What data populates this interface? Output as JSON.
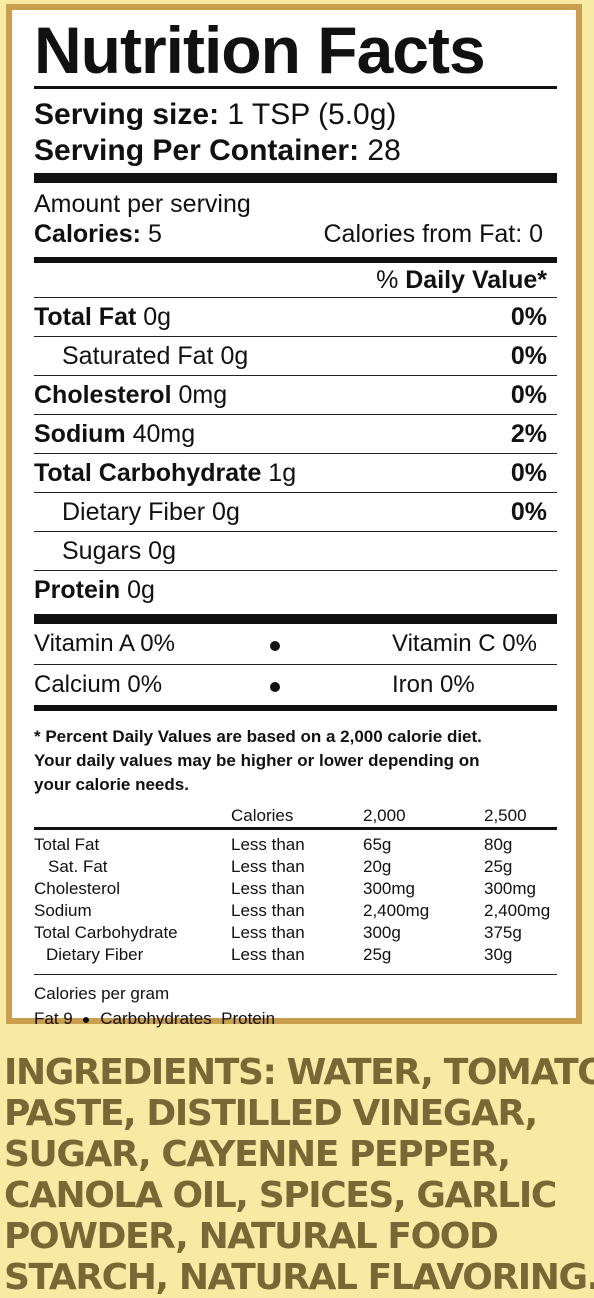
{
  "label": {
    "title": "Nutrition Facts",
    "serving_size_label": "Serving size:",
    "serving_size_value": "1 TSP (5.0g)",
    "servings_label": "Serving Per Container:",
    "servings_value": "28",
    "amount_per_serving": "Amount per serving",
    "calories_label": "Calories:",
    "calories_value": "5",
    "calories_from_fat": "Calories from Fat: 0",
    "daily_value_prefix": "% ",
    "daily_value_header": "Daily Value*",
    "nutrients": [
      {
        "name": "Total Fat",
        "amount": "0g",
        "pct": "0%"
      },
      {
        "name": "Saturated Fat",
        "amount": "0g",
        "pct": "0%"
      },
      {
        "name": "Cholesterol",
        "amount": "0mg",
        "pct": "0%"
      },
      {
        "name": "Sodium",
        "amount": "40mg",
        "pct": "2%"
      },
      {
        "name": "Total Carbohydrate",
        "amount": "1g",
        "pct": "0%"
      },
      {
        "name": "Dietary Fiber",
        "amount": "0g",
        "pct": "0%"
      },
      {
        "name": "Sugars",
        "amount": "0g",
        "pct": ""
      },
      {
        "name": "Protein",
        "amount": "0g",
        "pct": ""
      }
    ],
    "vitamins": [
      {
        "left": "Vitamin A 0%",
        "right": "Vitamin C 0%"
      },
      {
        "left": "Calcium 0%",
        "right": "Iron 0%"
      }
    ],
    "footnote": [
      "* Percent Daily Values are based on a 2,000 calorie diet.",
      "Your daily values may be higher or lower depending on",
      "your calorie needs."
    ],
    "dv_table": {
      "header": [
        "",
        "Calories",
        "2,000",
        "2,500"
      ],
      "rows": [
        [
          "Total Fat",
          "Less than",
          "65g",
          "80g"
        ],
        [
          "Sat. Fat",
          "Less than",
          "20g",
          "25g"
        ],
        [
          "Cholesterol",
          "Less than",
          "300mg",
          "300mg"
        ],
        [
          "Sodium",
          "Less than",
          "2,400mg",
          "2,400mg"
        ],
        [
          "Total Carbohydrate",
          "Less than",
          "300g",
          "375g"
        ],
        [
          "Dietary Fiber",
          "Less than",
          "25g",
          "30g"
        ]
      ]
    },
    "calories_per_gram": "Calories per gram",
    "cpg_fat": "Fat 9",
    "cpg_rest": "Carbohydrates  Protein"
  },
  "ingredients": [
    "INGREDIENTS: WATER, TOMATO",
    "PASTE, DISTILLED VINEGAR,",
    "SUGAR, CAYENNE PEPPER,",
    "CANOLA OIL, SPICES, GARLIC",
    "POWDER, NATURAL FOOD",
    "STARCH, NATURAL FLAVORING."
  ],
  "colors": {
    "border": "#c99e4c",
    "background": "#f8e9a3",
    "ingredients_text": "#7b6635"
  }
}
